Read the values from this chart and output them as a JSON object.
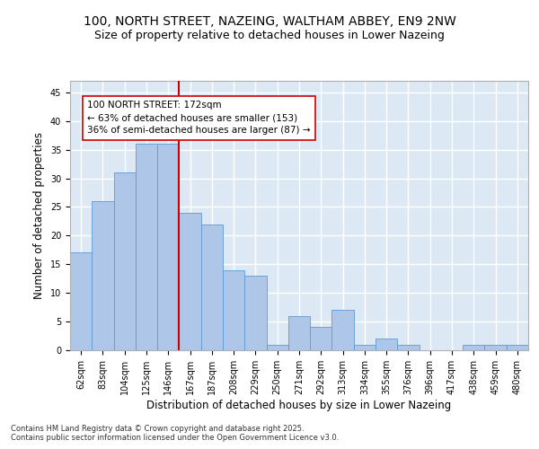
{
  "title1": "100, NORTH STREET, NAZEING, WALTHAM ABBEY, EN9 2NW",
  "title2": "Size of property relative to detached houses in Lower Nazeing",
  "xlabel": "Distribution of detached houses by size in Lower Nazeing",
  "ylabel": "Number of detached properties",
  "categories": [
    "62sqm",
    "83sqm",
    "104sqm",
    "125sqm",
    "146sqm",
    "167sqm",
    "187sqm",
    "208sqm",
    "229sqm",
    "250sqm",
    "271sqm",
    "292sqm",
    "313sqm",
    "334sqm",
    "355sqm",
    "376sqm",
    "396sqm",
    "417sqm",
    "438sqm",
    "459sqm",
    "480sqm"
  ],
  "values": [
    17,
    26,
    31,
    36,
    36,
    24,
    22,
    14,
    13,
    1,
    6,
    4,
    7,
    1,
    2,
    1,
    0,
    0,
    1,
    1,
    1
  ],
  "bar_color": "#aec6e8",
  "bar_edge_color": "#5b9bd5",
  "background_color": "#dce9f5",
  "grid_color": "#ffffff",
  "vline_index": 5,
  "vline_color": "#cc0000",
  "annotation_text": "100 NORTH STREET: 172sqm\n← 63% of detached houses are smaller (153)\n36% of semi-detached houses are larger (87) →",
  "annotation_box_color": "#ffffff",
  "annotation_box_edge": "#cc0000",
  "ylim": [
    0,
    47
  ],
  "yticks": [
    0,
    5,
    10,
    15,
    20,
    25,
    30,
    35,
    40,
    45
  ],
  "footer": "Contains HM Land Registry data © Crown copyright and database right 2025.\nContains public sector information licensed under the Open Government Licence v3.0.",
  "title_fontsize": 10,
  "subtitle_fontsize": 9,
  "tick_fontsize": 7,
  "label_fontsize": 8.5,
  "footer_fontsize": 6,
  "annotation_fontsize": 7.5
}
